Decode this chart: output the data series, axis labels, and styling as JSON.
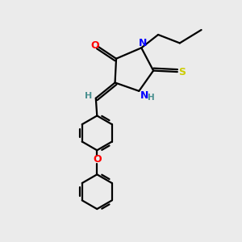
{
  "background_color": "#ebebeb",
  "bond_color": "#000000",
  "atom_colors": {
    "O": "#ff0000",
    "N": "#0000ff",
    "S": "#cccc00",
    "H": "#4a9090",
    "C": "#000000"
  },
  "figsize": [
    3.0,
    3.0
  ],
  "dpi": 100
}
